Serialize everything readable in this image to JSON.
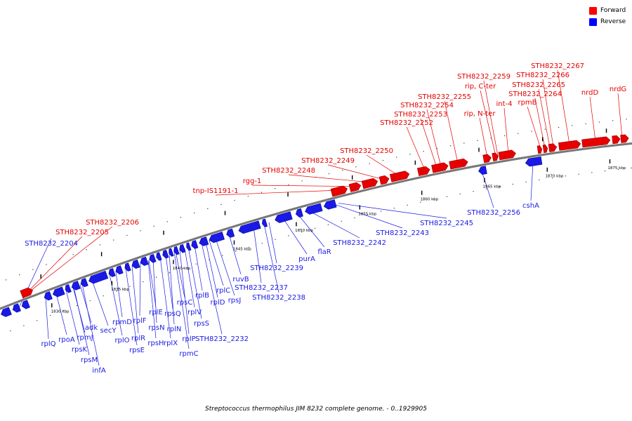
{
  "legend": [
    {
      "label": "Forward",
      "color": "#ff0000"
    },
    {
      "label": "Reverse",
      "color": "#0000ff"
    }
  ],
  "caption": "Streptococcus thermophilus JIM 8232 complete genome. - 0..1929905",
  "colors": {
    "forward": "#e60000",
    "reverse": "#1a1ae6",
    "backbone": "#777777"
  },
  "ticks": [
    {
      "label": "1830 kbp",
      "kbp": 1830
    },
    {
      "label": "1835 kbp",
      "kbp": 1835
    },
    {
      "label": "1840 kbp",
      "kbp": 1840
    },
    {
      "label": "1845 kbp",
      "kbp": 1845
    },
    {
      "label": "1850 kbp",
      "kbp": 1850
    },
    {
      "label": "1855 kbp",
      "kbp": 1855
    },
    {
      "label": "1860 kbp",
      "kbp": 1860
    },
    {
      "label": "1865 kbp",
      "kbp": 1865
    },
    {
      "label": "1870 kbp",
      "kbp": 1870
    },
    {
      "label": "1875 kbp",
      "kbp": 1875
    }
  ],
  "forward_genes": [
    {
      "label": "STH8232_2206"
    },
    {
      "label": "STH8232_2205"
    },
    {
      "label": "tnp-IS1191-1"
    },
    {
      "label": "rgg-1"
    },
    {
      "label": "STH8232_2248"
    },
    {
      "label": "STH8232_2249"
    },
    {
      "label": "STH8232_2250"
    },
    {
      "label": "STH8232_2252"
    },
    {
      "label": "STH8232_2253"
    },
    {
      "label": "STH8232_2254"
    },
    {
      "label": "STH8232_2255"
    },
    {
      "label": "rip, N-ter"
    },
    {
      "label": "rip, C-ter"
    },
    {
      "label": "STH8232_2259"
    },
    {
      "label": "int-4"
    },
    {
      "label": "rpmB"
    },
    {
      "label": "STH8232_2264"
    },
    {
      "label": "STH8232_2265"
    },
    {
      "label": "STH8232_2266"
    },
    {
      "label": "STH8232_2267"
    },
    {
      "label": "nrdD"
    },
    {
      "label": "nrdG"
    }
  ],
  "reverse_genes": [
    {
      "label": "STH8232_2204"
    },
    {
      "label": "rplQ"
    },
    {
      "label": "rpoA"
    },
    {
      "label": "rpsK"
    },
    {
      "label": "rpmJ"
    },
    {
      "label": "rpsM"
    },
    {
      "label": "adk"
    },
    {
      "label": "infA"
    },
    {
      "label": "secY"
    },
    {
      "label": "rplO"
    },
    {
      "label": "rpmD"
    },
    {
      "label": "rpsE"
    },
    {
      "label": "rplR"
    },
    {
      "label": "rplF"
    },
    {
      "label": "rpsH"
    },
    {
      "label": "rplE"
    },
    {
      "label": "rpsN"
    },
    {
      "label": "rplX"
    },
    {
      "label": "rpsQ"
    },
    {
      "label": "rplN"
    },
    {
      "label": "rpmC"
    },
    {
      "label": "rpsC"
    },
    {
      "label": "rplP"
    },
    {
      "label": "rplV"
    },
    {
      "label": "rpsS"
    },
    {
      "label": "rplB"
    },
    {
      "label": "STH8232_2232"
    },
    {
      "label": "rplD"
    },
    {
      "label": "rplC"
    },
    {
      "label": "rpsJ"
    },
    {
      "label": "ruvB"
    },
    {
      "label": "STH8232_2237"
    },
    {
      "label": "STH8232_2238"
    },
    {
      "label": "STH8232_2239"
    },
    {
      "label": "purA"
    },
    {
      "label": "flaR"
    },
    {
      "label": "STH8232_2242"
    },
    {
      "label": "STH8232_2243"
    },
    {
      "label": "STH8232_2245"
    },
    {
      "label": "STH8232_2256"
    },
    {
      "label": "cshA"
    }
  ]
}
